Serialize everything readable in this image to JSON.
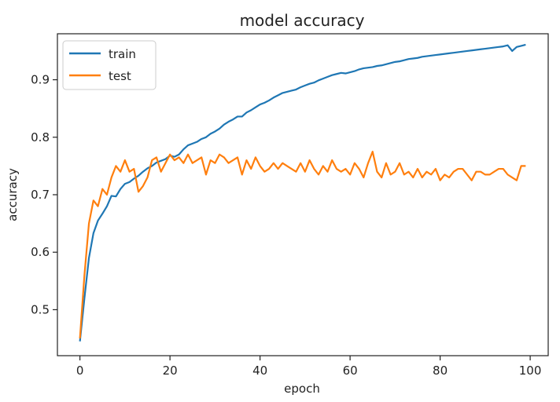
{
  "chart_data": {
    "type": "line",
    "title": "model accuracy",
    "xlabel": "epoch",
    "ylabel": "accuracy",
    "xlim": [
      -5,
      104
    ],
    "ylim": [
      0.42,
      0.98
    ],
    "xticks": [
      0,
      20,
      40,
      60,
      80,
      100
    ],
    "yticks": [
      0.5,
      0.6,
      0.7,
      0.8,
      0.9
    ],
    "legend_position": "top-left",
    "grid": false,
    "series": [
      {
        "name": "train",
        "color": "#1f77b4",
        "x": [
          0,
          1,
          2,
          3,
          4,
          5,
          6,
          7,
          8,
          9,
          10,
          11,
          12,
          13,
          14,
          15,
          16,
          17,
          18,
          19,
          20,
          21,
          22,
          23,
          24,
          25,
          26,
          27,
          28,
          29,
          30,
          31,
          32,
          33,
          34,
          35,
          36,
          37,
          38,
          39,
          40,
          41,
          42,
          43,
          44,
          45,
          46,
          47,
          48,
          49,
          50,
          51,
          52,
          53,
          54,
          55,
          56,
          57,
          58,
          59,
          60,
          61,
          62,
          63,
          64,
          65,
          66,
          67,
          68,
          69,
          70,
          71,
          72,
          73,
          74,
          75,
          76,
          77,
          78,
          79,
          80,
          81,
          82,
          83,
          84,
          85,
          86,
          87,
          88,
          89,
          90,
          91,
          92,
          93,
          94,
          95,
          96,
          97,
          98,
          99
        ],
        "values": [
          0.445,
          0.52,
          0.59,
          0.633,
          0.655,
          0.667,
          0.68,
          0.698,
          0.697,
          0.71,
          0.719,
          0.722,
          0.728,
          0.733,
          0.74,
          0.746,
          0.75,
          0.756,
          0.759,
          0.762,
          0.768,
          0.766,
          0.77,
          0.779,
          0.786,
          0.789,
          0.792,
          0.797,
          0.8,
          0.806,
          0.81,
          0.815,
          0.822,
          0.827,
          0.831,
          0.836,
          0.836,
          0.843,
          0.847,
          0.852,
          0.857,
          0.86,
          0.864,
          0.869,
          0.873,
          0.877,
          0.879,
          0.881,
          0.883,
          0.887,
          0.89,
          0.893,
          0.895,
          0.899,
          0.902,
          0.905,
          0.908,
          0.91,
          0.912,
          0.911,
          0.913,
          0.915,
          0.918,
          0.92,
          0.921,
          0.922,
          0.924,
          0.925,
          0.927,
          0.929,
          0.931,
          0.932,
          0.934,
          0.936,
          0.937,
          0.938,
          0.94,
          0.941,
          0.942,
          0.943,
          0.944,
          0.945,
          0.946,
          0.947,
          0.948,
          0.949,
          0.95,
          0.951,
          0.952,
          0.953,
          0.954,
          0.955,
          0.956,
          0.957,
          0.958,
          0.96,
          0.95,
          0.957,
          0.959,
          0.961
        ]
      },
      {
        "name": "test",
        "color": "#ff7f0e",
        "x": [
          0,
          1,
          2,
          3,
          4,
          5,
          6,
          7,
          8,
          9,
          10,
          11,
          12,
          13,
          14,
          15,
          16,
          17,
          18,
          19,
          20,
          21,
          22,
          23,
          24,
          25,
          26,
          27,
          28,
          29,
          30,
          31,
          32,
          33,
          34,
          35,
          36,
          37,
          38,
          39,
          40,
          41,
          42,
          43,
          44,
          45,
          46,
          47,
          48,
          49,
          50,
          51,
          52,
          53,
          54,
          55,
          56,
          57,
          58,
          59,
          60,
          61,
          62,
          63,
          64,
          65,
          66,
          67,
          68,
          69,
          70,
          71,
          72,
          73,
          74,
          75,
          76,
          77,
          78,
          79,
          80,
          81,
          82,
          83,
          84,
          85,
          86,
          87,
          88,
          89,
          90,
          91,
          92,
          93,
          94,
          95,
          96,
          97,
          98,
          99
        ],
        "values": [
          0.45,
          0.56,
          0.65,
          0.69,
          0.68,
          0.71,
          0.7,
          0.73,
          0.75,
          0.74,
          0.76,
          0.74,
          0.745,
          0.705,
          0.715,
          0.73,
          0.76,
          0.765,
          0.74,
          0.755,
          0.77,
          0.76,
          0.765,
          0.755,
          0.77,
          0.755,
          0.76,
          0.765,
          0.735,
          0.76,
          0.755,
          0.77,
          0.765,
          0.755,
          0.76,
          0.765,
          0.735,
          0.76,
          0.745,
          0.765,
          0.75,
          0.74,
          0.745,
          0.755,
          0.745,
          0.755,
          0.75,
          0.745,
          0.74,
          0.755,
          0.74,
          0.76,
          0.745,
          0.735,
          0.75,
          0.74,
          0.76,
          0.745,
          0.74,
          0.745,
          0.735,
          0.755,
          0.745,
          0.73,
          0.755,
          0.775,
          0.74,
          0.73,
          0.755,
          0.735,
          0.74,
          0.755,
          0.735,
          0.74,
          0.73,
          0.745,
          0.73,
          0.74,
          0.735,
          0.745,
          0.725,
          0.735,
          0.73,
          0.74,
          0.745,
          0.745,
          0.735,
          0.725,
          0.74,
          0.74,
          0.735,
          0.735,
          0.74,
          0.745,
          0.745,
          0.735,
          0.73,
          0.725,
          0.75,
          0.75
        ]
      }
    ]
  }
}
